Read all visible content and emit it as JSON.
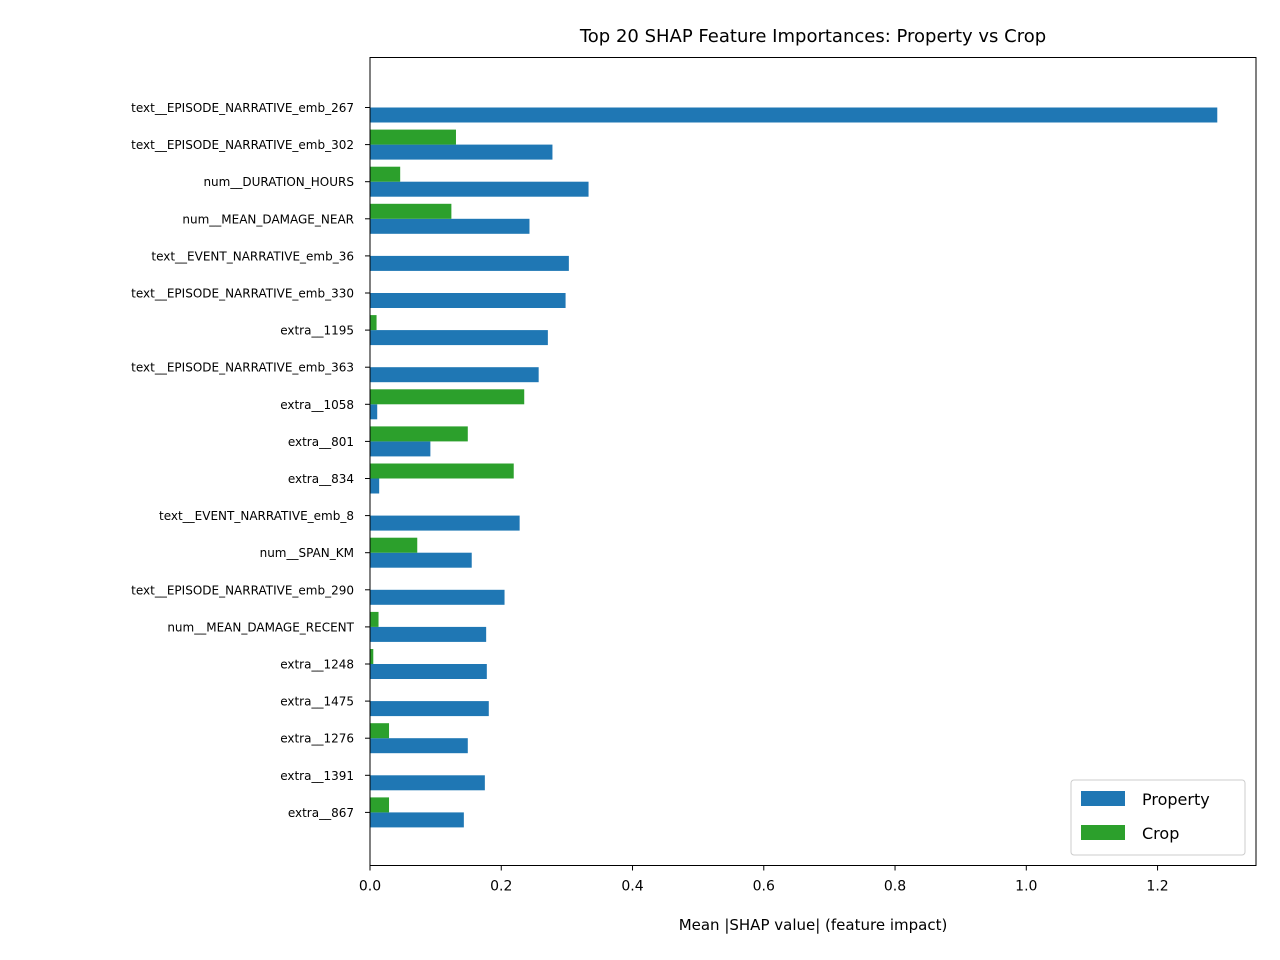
{
  "chart_data": {
    "type": "bar",
    "orientation": "horizontal",
    "title": "Top 20 SHAP Feature Importances: Property vs Crop",
    "xlabel": "Mean |SHAP value| (feature impact)",
    "ylabel": "",
    "xlim": [
      0,
      1.35
    ],
    "xticks": [
      "0.0",
      "0.2",
      "0.4",
      "0.6",
      "0.8",
      "1.0",
      "1.2"
    ],
    "grid": false,
    "legend_position": "bottom-right",
    "categories": [
      "text__EPISODE_NARRATIVE_emb_267",
      "text__EPISODE_NARRATIVE_emb_302",
      "num__DURATION_HOURS",
      "num__MEAN_DAMAGE_NEAR",
      "text__EVENT_NARRATIVE_emb_36",
      "text__EPISODE_NARRATIVE_emb_330",
      "extra__1195",
      "text__EPISODE_NARRATIVE_emb_363",
      "extra__1058",
      "extra__801",
      "extra__834",
      "text__EVENT_NARRATIVE_emb_8",
      "num__SPAN_KM",
      "text__EPISODE_NARRATIVE_emb_290",
      "num__MEAN_DAMAGE_RECENT",
      "extra__1248",
      "extra__1475",
      "extra__1276",
      "extra__1391",
      "extra__867"
    ],
    "series": [
      {
        "name": "Property",
        "color": "#1f77b4",
        "values": [
          1.291,
          0.278,
          0.333,
          0.243,
          0.303,
          0.298,
          0.271,
          0.257,
          0.011,
          0.092,
          0.014,
          0.228,
          0.155,
          0.205,
          0.177,
          0.178,
          0.181,
          0.149,
          0.175,
          0.143
        ]
      },
      {
        "name": "Crop",
        "color": "#2ca02c",
        "values": [
          0.0,
          0.131,
          0.046,
          0.124,
          0.0,
          0.0,
          0.01,
          0.0,
          0.235,
          0.149,
          0.219,
          0.0,
          0.072,
          0.0,
          0.013,
          0.005,
          0.0,
          0.029,
          0.0,
          0.029
        ]
      }
    ]
  }
}
